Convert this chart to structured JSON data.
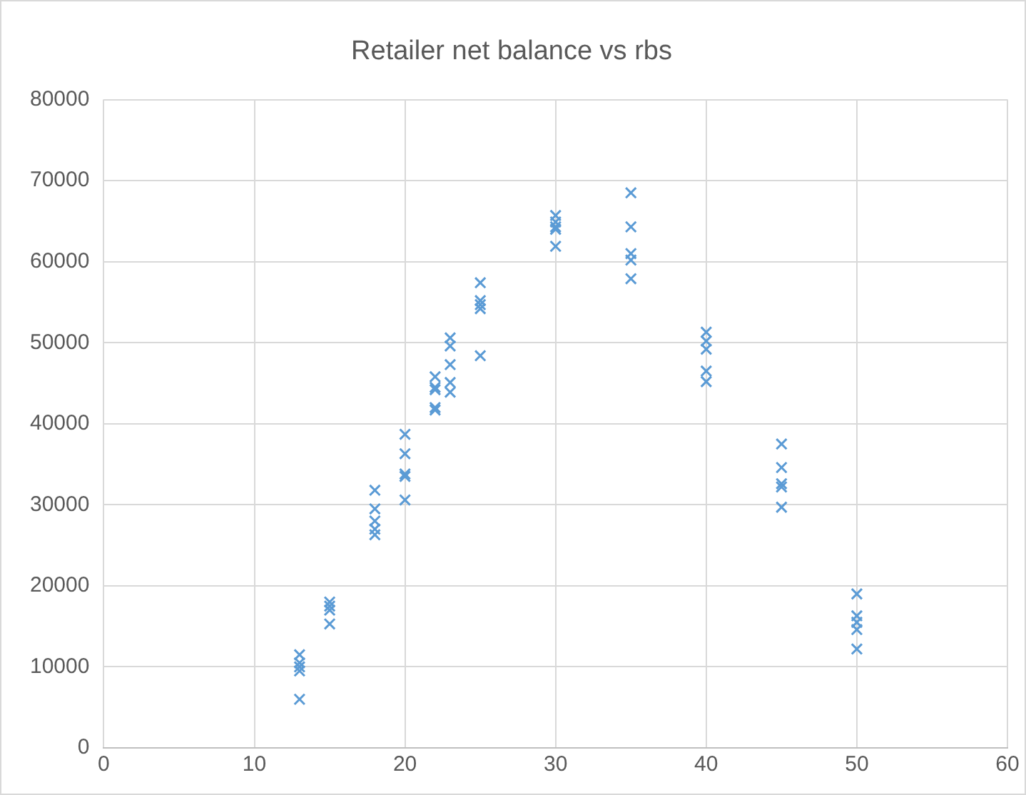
{
  "chart_data": {
    "type": "scatter",
    "title": "Retailer net balance vs rbs",
    "x": [
      13,
      13,
      13,
      13,
      13,
      15,
      15,
      15,
      15,
      18,
      18,
      18,
      18,
      18,
      20,
      20,
      20,
      20,
      20,
      22,
      22,
      22,
      22,
      22,
      23,
      23,
      23,
      23,
      23,
      25,
      25,
      25,
      25,
      25,
      30,
      30,
      30,
      30,
      30,
      35,
      35,
      35,
      35,
      35,
      40,
      40,
      40,
      40,
      40,
      45,
      45,
      45,
      45,
      45,
      50,
      50,
      50,
      50,
      50
    ],
    "values": [
      11500,
      10500,
      10000,
      9500,
      6000,
      18000,
      17500,
      17000,
      15300,
      31800,
      29500,
      28000,
      27000,
      26300,
      38700,
      36300,
      33800,
      33500,
      30600,
      45800,
      44500,
      44200,
      42000,
      41700,
      50600,
      49600,
      47300,
      45100,
      43900,
      57400,
      55200,
      54700,
      54200,
      48400,
      65700,
      64900,
      64300,
      64000,
      61900,
      68500,
      64300,
      61000,
      60200,
      57900,
      51300,
      50200,
      49200,
      46500,
      45200,
      37500,
      34600,
      32600,
      32200,
      29700,
      19000,
      16300,
      15500,
      14600,
      12200
    ],
    "color": "#5b9bd5",
    "marker": "cross",
    "xlim": [
      0,
      60
    ],
    "xticks": [
      0,
      10,
      20,
      30,
      40,
      50,
      60
    ],
    "ylim": [
      0,
      80000
    ],
    "yticks": [
      0,
      10000,
      20000,
      30000,
      40000,
      50000,
      60000,
      70000,
      80000
    ],
    "grid": true,
    "legend": false
  }
}
